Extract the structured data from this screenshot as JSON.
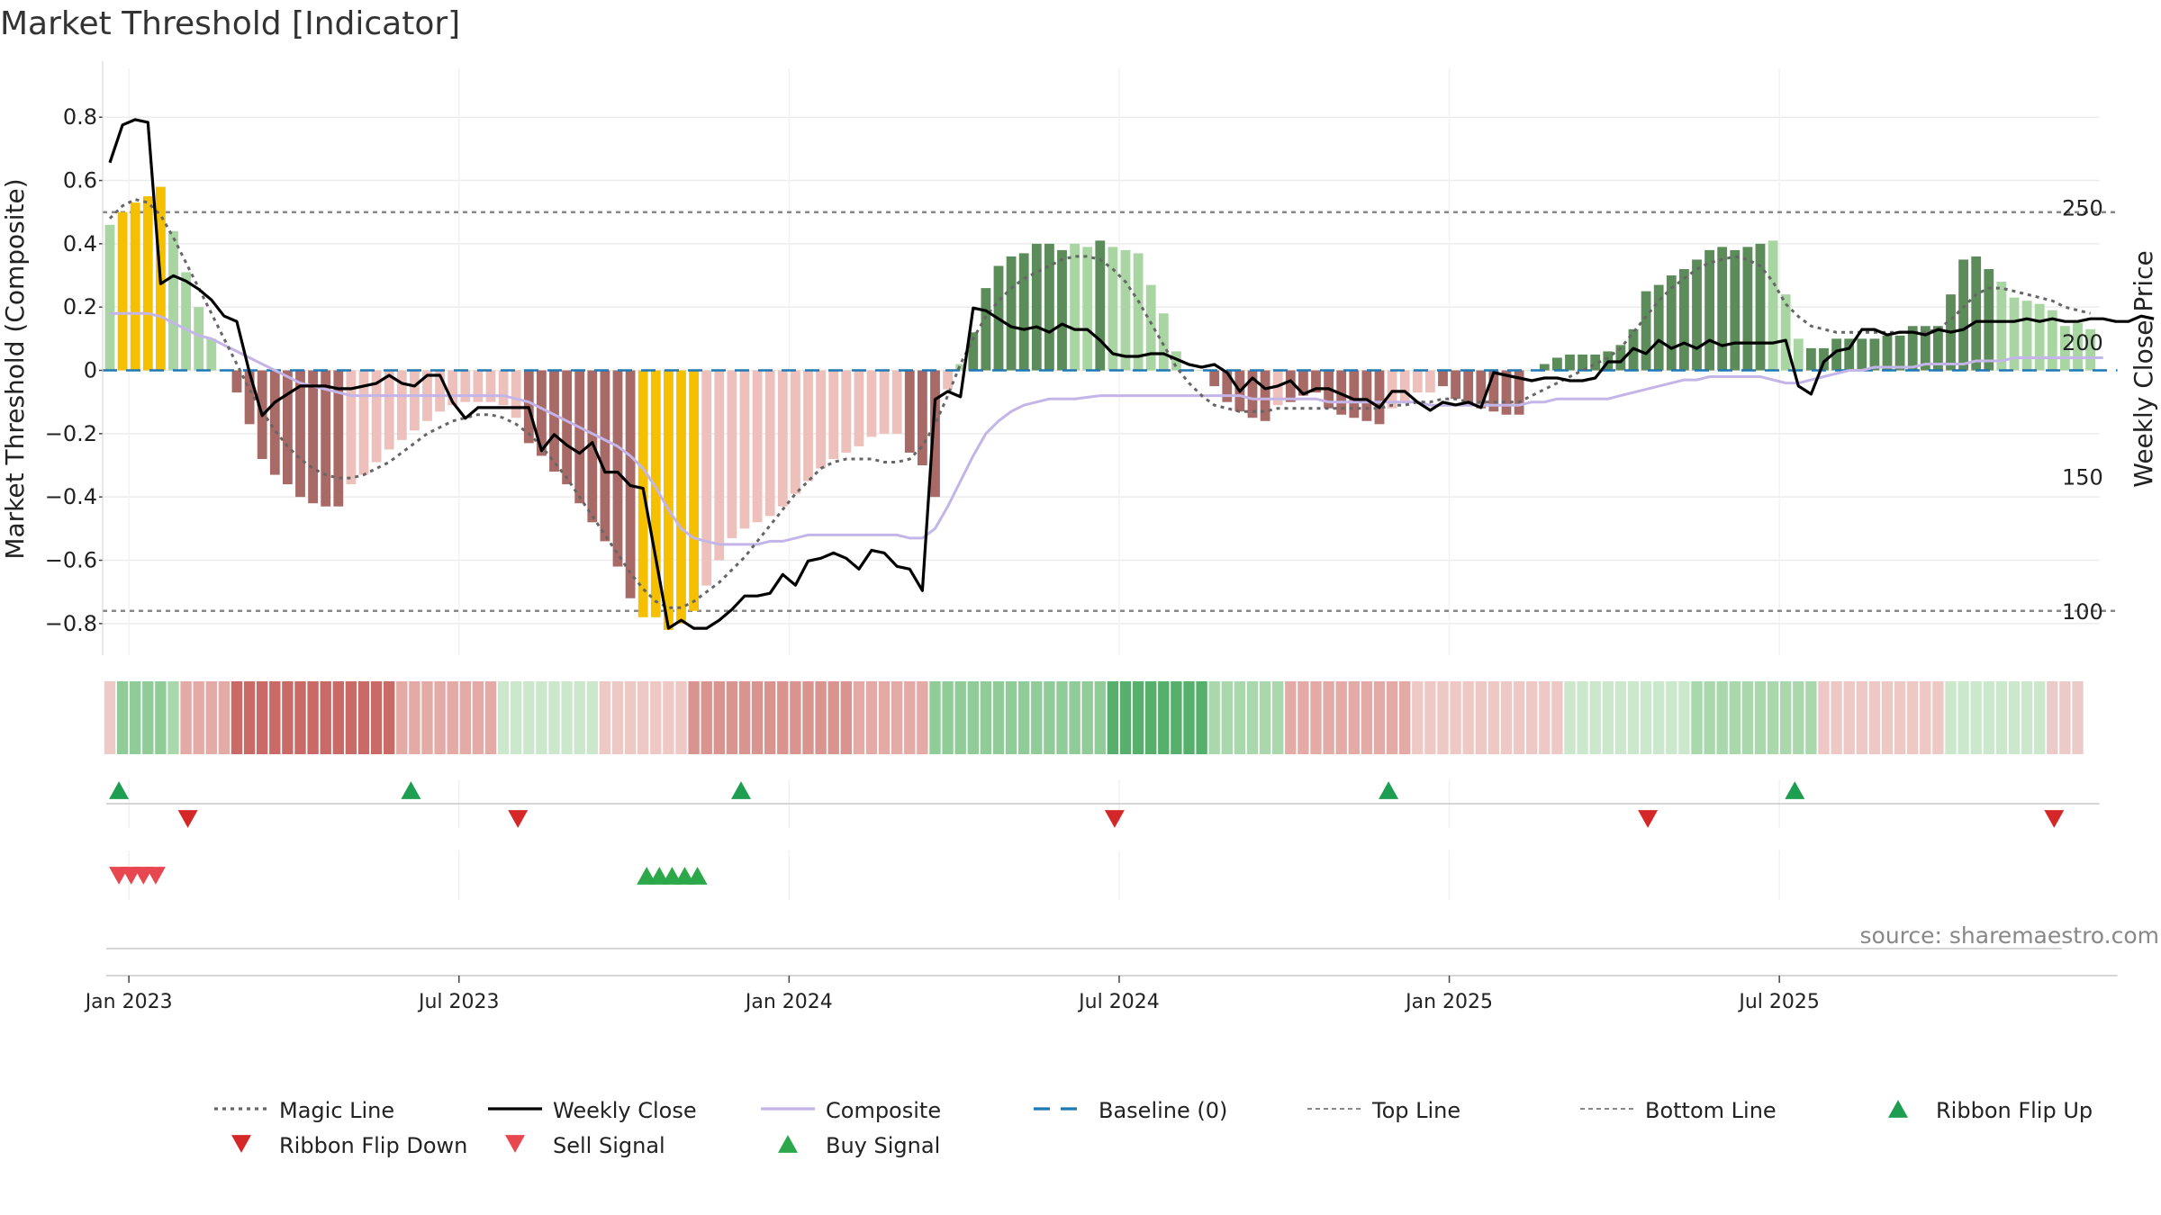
{
  "chart_data": {
    "type": "bar",
    "title": "Market Threshold [Indicator]",
    "ylabel": "Market Threshold (Composite)",
    "y2label": "Weekly Close Price",
    "ylim": [
      -0.9,
      0.92
    ],
    "y2lim": [
      84,
      298
    ],
    "yticks": [
      "0.8",
      "0.6",
      "0.4",
      "0.2",
      "0",
      "−0.2",
      "−0.4",
      "−0.6",
      "−0.8"
    ],
    "yticks_values": [
      0.8,
      0.6,
      0.4,
      0.2,
      0,
      -0.2,
      -0.4,
      -0.6,
      -0.8
    ],
    "y2ticks": [
      "250",
      "200",
      "150",
      "100"
    ],
    "y2ticks_values": [
      250,
      200,
      150,
      100
    ],
    "xticks": [
      "Jan 2023",
      "Jul 2023",
      "Jan 2024",
      "Jul 2024",
      "Jan 2025",
      "Jul 2025"
    ],
    "xticks_weeks": [
      1.5,
      27.5,
      53.5,
      79.5,
      105.5,
      131.5
    ],
    "top_line": 0.5,
    "bottom_line": -0.76,
    "grid": true,
    "legend_position": "bottom",
    "source": "source: sharemaestro.com",
    "legend": [
      {
        "label": "Magic Line",
        "kind": "dotted",
        "color": "#666666"
      },
      {
        "label": "Weekly Close",
        "kind": "solid",
        "color": "#000000"
      },
      {
        "label": "Composite",
        "kind": "solid",
        "color": "#c4b5e8"
      },
      {
        "label": "Baseline (0)",
        "kind": "dashed",
        "color": "#1f77b4"
      },
      {
        "label": "Top Line",
        "kind": "dashed-gray",
        "color": "#888888"
      },
      {
        "label": "Bottom Line",
        "kind": "dashed-gray",
        "color": "#888888"
      },
      {
        "label": "Ribbon Flip Up",
        "kind": "tri-up",
        "color": "#1e9e50"
      },
      {
        "label": "Ribbon Flip Down",
        "kind": "tri-down",
        "color": "#d62728"
      },
      {
        "label": "Sell Signal",
        "kind": "tri-down",
        "color": "#e8474f"
      },
      {
        "label": "Buy Signal",
        "kind": "tri-up",
        "color": "#2ca84a"
      }
    ],
    "colors": {
      "dark_green": "#5b8c5a",
      "light_green": "#a8d5a2",
      "dark_red": "#a86a66",
      "light_red": "#edc0bc",
      "extreme": "#f5c000",
      "composite": "#c4b5e8",
      "baseline": "#1f77b4"
    },
    "bar_values": [
      0.46,
      0.5,
      0.53,
      0.55,
      0.58,
      0.44,
      0.31,
      0.2,
      0.1,
      0,
      -0.07,
      -0.17,
      -0.28,
      -0.33,
      -0.36,
      -0.4,
      -0.42,
      -0.43,
      -0.43,
      -0.36,
      -0.33,
      -0.29,
      -0.25,
      -0.22,
      -0.19,
      -0.16,
      -0.13,
      -0.11,
      -0.1,
      -0.1,
      -0.1,
      -0.11,
      -0.15,
      -0.23,
      -0.27,
      -0.32,
      -0.36,
      -0.42,
      -0.48,
      -0.54,
      -0.62,
      -0.72,
      -0.78,
      -0.78,
      -0.82,
      -0.8,
      -0.76,
      -0.68,
      -0.6,
      -0.53,
      -0.5,
      -0.48,
      -0.46,
      -0.43,
      -0.39,
      -0.35,
      -0.31,
      -0.28,
      -0.26,
      -0.24,
      -0.21,
      -0.2,
      -0.2,
      -0.26,
      -0.3,
      -0.4,
      -0.06,
      0.02,
      0.12,
      0.26,
      0.33,
      0.36,
      0.37,
      0.4,
      0.4,
      0.38,
      0.4,
      0.39,
      0.41,
      0.39,
      0.38,
      0.37,
      0.27,
      0.18,
      0.06,
      0,
      0,
      -0.05,
      -0.1,
      -0.13,
      -0.15,
      -0.16,
      -0.11,
      -0.1,
      -0.08,
      -0.07,
      -0.12,
      -0.14,
      -0.15,
      -0.16,
      -0.17,
      -0.12,
      -0.1,
      -0.07,
      -0.07,
      -0.05,
      -0.09,
      -0.11,
      -0.12,
      -0.13,
      -0.14,
      -0.14,
      0,
      0.02,
      0.04,
      0.05,
      0.05,
      0.05,
      0.06,
      0.08,
      0.13,
      0.25,
      0.27,
      0.3,
      0.32,
      0.35,
      0.38,
      0.39,
      0.38,
      0.39,
      0.4,
      0.41,
      0.24,
      0.1,
      0.07,
      0.07,
      0.1,
      0.1,
      0.1,
      0.1,
      0.11,
      0.11,
      0.14,
      0.14,
      0.14,
      0.24,
      0.35,
      0.36,
      0.32,
      0.28,
      0.23,
      0.22,
      0.21,
      0.19,
      0.14,
      0.15,
      0.13
    ],
    "bar_shades": [
      "l",
      "e",
      "e",
      "e",
      "e",
      "l",
      "l",
      "l",
      "l",
      "d",
      "d",
      "d",
      "d",
      "d",
      "d",
      "d",
      "d",
      "d",
      "d",
      "l",
      "l",
      "l",
      "l",
      "l",
      "l",
      "l",
      "l",
      "l",
      "l",
      "l",
      "l",
      "l",
      "l",
      "d",
      "d",
      "d",
      "d",
      "d",
      "d",
      "d",
      "d",
      "d",
      "e",
      "e",
      "e",
      "e",
      "e",
      "l",
      "l",
      "l",
      "l",
      "l",
      "l",
      "l",
      "l",
      "l",
      "l",
      "l",
      "l",
      "l",
      "l",
      "l",
      "l",
      "d",
      "d",
      "d",
      "l",
      "l",
      "d",
      "d",
      "d",
      "d",
      "d",
      "d",
      "d",
      "d",
      "l",
      "l",
      "d",
      "l",
      "l",
      "l",
      "l",
      "l",
      "l",
      "l",
      "l",
      "d",
      "d",
      "d",
      "d",
      "d",
      "l",
      "d",
      "d",
      "d",
      "d",
      "d",
      "d",
      "d",
      "d",
      "l",
      "l",
      "l",
      "l",
      "d",
      "d",
      "d",
      "d",
      "d",
      "d",
      "d",
      "l",
      "d",
      "d",
      "d",
      "d",
      "d",
      "d",
      "d",
      "d",
      "d",
      "d",
      "d",
      "d",
      "d",
      "d",
      "d",
      "d",
      "d",
      "d",
      "l",
      "l",
      "l",
      "d",
      "d",
      "d",
      "d",
      "d",
      "d",
      "d",
      "d",
      "d",
      "d",
      "d",
      "d",
      "d",
      "d",
      "d",
      "l",
      "l",
      "l",
      "l",
      "l",
      "l",
      "l",
      "l"
    ],
    "close_values": [
      267,
      281,
      283,
      282,
      222,
      225,
      223,
      220,
      216,
      210,
      208,
      189,
      173,
      178,
      181,
      184,
      184,
      184,
      183,
      183,
      184,
      185,
      188,
      185,
      184,
      188,
      188,
      178,
      172,
      176,
      176,
      176,
      176,
      176,
      160,
      166,
      162,
      159,
      163,
      152,
      152,
      147,
      146,
      120,
      94,
      97,
      94,
      94,
      97,
      101,
      106,
      106,
      107,
      114,
      110,
      119,
      120,
      122,
      120,
      116,
      123,
      122,
      117,
      116,
      108,
      179,
      182,
      180,
      213,
      212,
      209,
      206,
      205,
      206,
      204,
      207,
      205,
      205,
      201,
      196,
      195,
      195,
      196,
      196,
      194,
      192,
      191,
      192,
      189,
      182,
      187,
      183,
      184,
      186,
      181,
      183,
      183,
      181,
      179,
      179,
      176,
      182,
      182,
      178,
      175,
      178,
      177,
      178,
      176,
      189,
      188,
      187,
      186,
      187,
      187,
      186,
      186,
      187,
      193,
      193,
      198,
      196,
      201,
      198,
      200,
      198,
      201,
      199,
      200,
      200,
      200,
      200,
      201,
      184,
      181,
      193,
      197,
      198,
      205,
      205,
      203,
      204,
      204,
      203,
      205,
      204,
      205,
      208,
      208,
      208,
      208,
      209,
      208,
      209,
      208,
      208,
      209,
      209,
      208,
      208,
      210,
      209
    ],
    "magic_values": [
      0.48,
      0.52,
      0.54,
      0.53,
      0.49,
      0.42,
      0.34,
      0.26,
      0.18,
      0.1,
      0.02,
      -0.06,
      -0.13,
      -0.19,
      -0.24,
      -0.28,
      -0.31,
      -0.33,
      -0.34,
      -0.34,
      -0.33,
      -0.31,
      -0.29,
      -0.26,
      -0.23,
      -0.2,
      -0.18,
      -0.16,
      -0.15,
      -0.14,
      -0.14,
      -0.15,
      -0.17,
      -0.2,
      -0.24,
      -0.29,
      -0.34,
      -0.4,
      -0.46,
      -0.52,
      -0.58,
      -0.64,
      -0.69,
      -0.73,
      -0.75,
      -0.75,
      -0.73,
      -0.7,
      -0.67,
      -0.63,
      -0.59,
      -0.54,
      -0.49,
      -0.44,
      -0.39,
      -0.35,
      -0.31,
      -0.29,
      -0.28,
      -0.28,
      -0.28,
      -0.29,
      -0.29,
      -0.28,
      -0.24,
      -0.17,
      -0.08,
      0.02,
      0.1,
      0.17,
      0.22,
      0.26,
      0.29,
      0.31,
      0.33,
      0.35,
      0.36,
      0.36,
      0.35,
      0.32,
      0.28,
      0.22,
      0.15,
      0.08,
      0.01,
      -0.04,
      -0.08,
      -0.11,
      -0.12,
      -0.13,
      -0.13,
      -0.13,
      -0.12,
      -0.12,
      -0.12,
      -0.12,
      -0.12,
      -0.12,
      -0.12,
      -0.12,
      -0.12,
      -0.11,
      -0.11,
      -0.1,
      -0.1,
      -0.09,
      -0.09,
      -0.1,
      -0.1,
      -0.1,
      -0.1,
      -0.1,
      -0.08,
      -0.06,
      -0.04,
      -0.02,
      0.0,
      0.02,
      0.04,
      0.07,
      0.12,
      0.17,
      0.22,
      0.26,
      0.29,
      0.32,
      0.34,
      0.35,
      0.36,
      0.35,
      0.33,
      0.28,
      0.21,
      0.17,
      0.14,
      0.13,
      0.12,
      0.12,
      0.12,
      0.12,
      0.12,
      0.12,
      0.12,
      0.12,
      0.13,
      0.16,
      0.2,
      0.24,
      0.26,
      0.26,
      0.25,
      0.24,
      0.23,
      0.22,
      0.2,
      0.19,
      0.18
    ],
    "composite_values": [
      0.18,
      0.18,
      0.18,
      0.18,
      0.17,
      0.15,
      0.13,
      0.11,
      0.1,
      0.08,
      0.06,
      0.04,
      0.02,
      0.0,
      -0.02,
      -0.04,
      -0.05,
      -0.06,
      -0.07,
      -0.08,
      -0.08,
      -0.08,
      -0.08,
      -0.08,
      -0.08,
      -0.08,
      -0.08,
      -0.08,
      -0.08,
      -0.08,
      -0.08,
      -0.08,
      -0.09,
      -0.1,
      -0.12,
      -0.14,
      -0.16,
      -0.18,
      -0.2,
      -0.22,
      -0.24,
      -0.27,
      -0.31,
      -0.37,
      -0.44,
      -0.5,
      -0.53,
      -0.54,
      -0.55,
      -0.55,
      -0.55,
      -0.55,
      -0.54,
      -0.54,
      -0.53,
      -0.52,
      -0.52,
      -0.52,
      -0.52,
      -0.52,
      -0.52,
      -0.52,
      -0.52,
      -0.53,
      -0.53,
      -0.5,
      -0.43,
      -0.35,
      -0.27,
      -0.2,
      -0.16,
      -0.13,
      -0.11,
      -0.1,
      -0.09,
      -0.09,
      -0.09,
      -0.085,
      -0.08,
      -0.08,
      -0.08,
      -0.08,
      -0.08,
      -0.08,
      -0.08,
      -0.08,
      -0.08,
      -0.08,
      -0.08,
      -0.08,
      -0.09,
      -0.09,
      -0.09,
      -0.09,
      -0.09,
      -0.09,
      -0.1,
      -0.1,
      -0.1,
      -0.1,
      -0.1,
      -0.1,
      -0.1,
      -0.1,
      -0.11,
      -0.11,
      -0.11,
      -0.11,
      -0.11,
      -0.11,
      -0.11,
      -0.11,
      -0.1,
      -0.1,
      -0.09,
      -0.09,
      -0.09,
      -0.09,
      -0.09,
      -0.08,
      -0.07,
      -0.06,
      -0.05,
      -0.04,
      -0.03,
      -0.03,
      -0.02,
      -0.02,
      -0.02,
      -0.02,
      -0.02,
      -0.03,
      -0.04,
      -0.04,
      -0.03,
      -0.02,
      -0.01,
      0.0,
      0.0,
      0.01,
      0.01,
      0.01,
      0.01,
      0.02,
      0.02,
      0.02,
      0.02,
      0.03,
      0.03,
      0.03,
      0.04,
      0.04,
      0.04,
      0.04,
      0.04,
      0.04,
      0.04,
      0.04
    ],
    "ribbon": [
      {
        "from": 0,
        "to": 0,
        "shade": "light_red"
      },
      {
        "from": 1,
        "to": 4,
        "shade": "green3"
      },
      {
        "from": 5,
        "to": 5,
        "shade": "green2"
      },
      {
        "from": 6,
        "to": 9,
        "shade": "red2"
      },
      {
        "from": 10,
        "to": 22,
        "shade": "red4"
      },
      {
        "from": 23,
        "to": 30,
        "shade": "red2"
      },
      {
        "from": 31,
        "to": 38,
        "shade": "green1"
      },
      {
        "from": 39,
        "to": 45,
        "shade": "red1"
      },
      {
        "from": 46,
        "to": 58,
        "shade": "red3"
      },
      {
        "from": 59,
        "to": 64,
        "shade": "red2"
      },
      {
        "from": 65,
        "to": 78,
        "shade": "green3"
      },
      {
        "from": 79,
        "to": 86,
        "shade": "green4"
      },
      {
        "from": 87,
        "to": 92,
        "shade": "green2"
      },
      {
        "from": 93,
        "to": 102,
        "shade": "red2"
      },
      {
        "from": 103,
        "to": 114,
        "shade": "red1"
      },
      {
        "from": 115,
        "to": 124,
        "shade": "green1"
      },
      {
        "from": 125,
        "to": 134,
        "shade": "green2"
      },
      {
        "from": 135,
        "to": 144,
        "shade": "red1"
      },
      {
        "from": 145,
        "to": 152,
        "shade": "green1"
      },
      {
        "from": 153,
        "to": 155,
        "shade": "light_red"
      }
    ],
    "ribbon_flip_up_weeks": [
      1,
      24,
      50,
      101,
      133
    ],
    "ribbon_flip_down_weeks": [
      6,
      32,
      79,
      121,
      153
    ],
    "sell_signal_weeks": [
      1,
      2,
      3,
      4
    ],
    "buy_signal_weeks": [
      42,
      43,
      44,
      45,
      46
    ]
  }
}
